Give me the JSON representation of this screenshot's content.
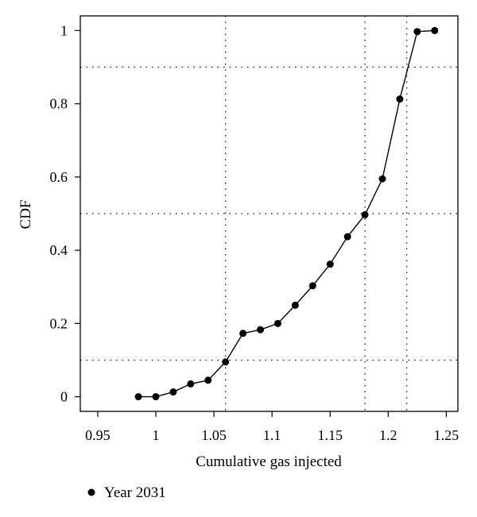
{
  "chart_data": {
    "type": "line",
    "xlabel": "Cumulative gas injected",
    "ylabel": "CDF",
    "xlim": [
      0.935,
      1.26
    ],
    "ylim": [
      -0.04,
      1.04
    ],
    "xticks": [
      "0.95",
      "1",
      "1.05",
      "1.1",
      "1.15",
      "1.2",
      "1.25"
    ],
    "yticks": [
      "0",
      "0.2",
      "0.4",
      "0.6",
      "0.8",
      "1"
    ],
    "grid": "dotted reference lines at P10, P50, P90",
    "reference_lines": {
      "horizontal": [
        0.1,
        0.5,
        0.9
      ],
      "vertical": [
        1.06,
        1.18,
        1.216
      ]
    },
    "legend_position": "bottom-left",
    "series": [
      {
        "name": "Year 2031",
        "color": "#000000",
        "marker": "filled-circle",
        "x": [
          0.985,
          1.0,
          1.015,
          1.03,
          1.045,
          1.06,
          1.075,
          1.09,
          1.105,
          1.12,
          1.135,
          1.15,
          1.165,
          1.18,
          1.195,
          1.21,
          1.225,
          1.24
        ],
        "y": [
          0.0,
          0.0,
          0.013,
          0.035,
          0.045,
          0.095,
          0.173,
          0.183,
          0.2,
          0.25,
          0.303,
          0.362,
          0.437,
          0.497,
          0.595,
          0.813,
          0.997,
          1.0
        ]
      }
    ]
  }
}
